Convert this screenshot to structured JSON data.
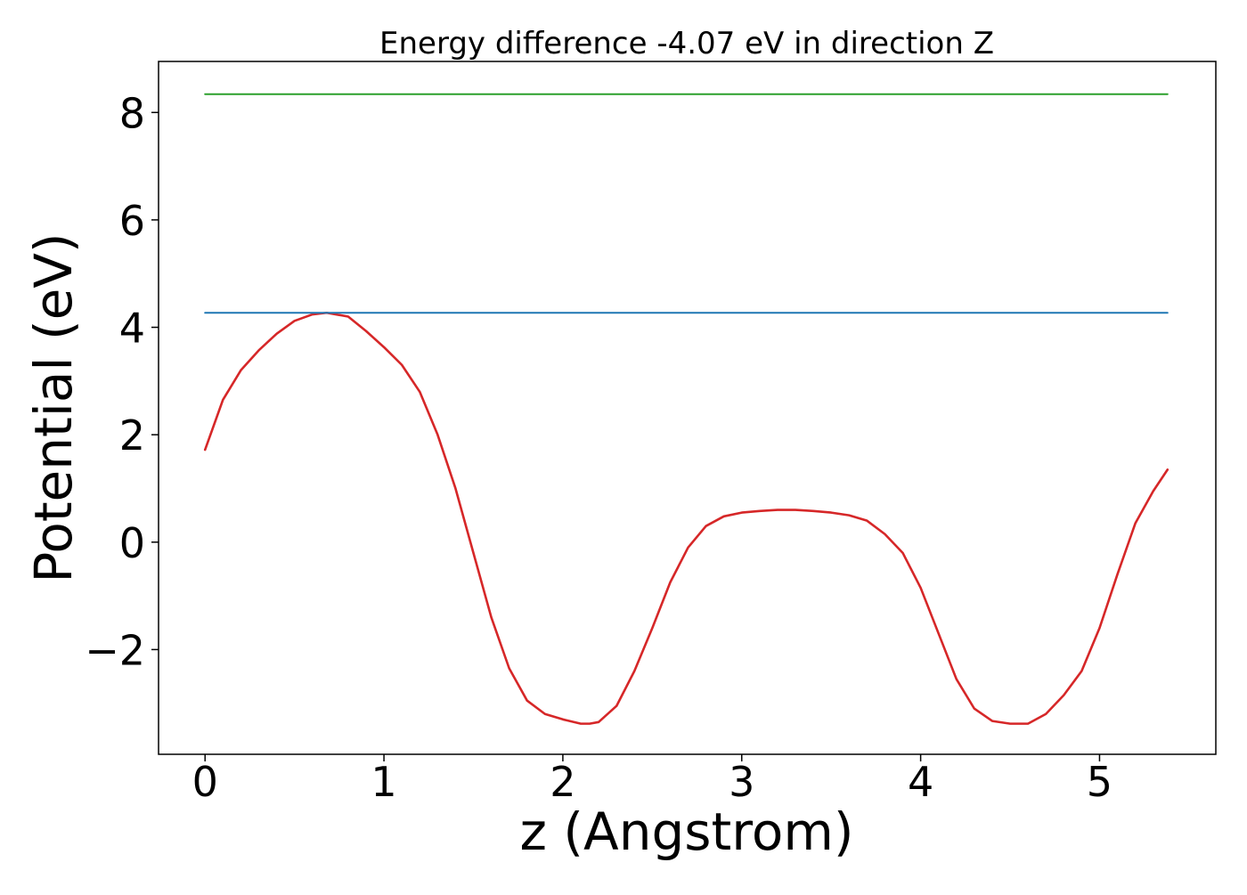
{
  "chart_data": {
    "type": "line",
    "title": "Energy difference -4.07 eV in direction Z",
    "xlabel": "z (Angstrom)",
    "ylabel": "Potential (eV)",
    "xlim": [
      -0.26,
      5.65
    ],
    "ylim": [
      -3.95,
      8.95
    ],
    "x_ticks": [
      0,
      1,
      2,
      3,
      4,
      5
    ],
    "x_tick_labels": [
      "0",
      "1",
      "2",
      "3",
      "4",
      "5"
    ],
    "y_ticks": [
      -2,
      0,
      2,
      4,
      6,
      8
    ],
    "y_tick_labels": [
      "−2",
      "0",
      "2",
      "4",
      "6",
      "8"
    ],
    "grid": false,
    "legend": false,
    "series": [
      {
        "color": "#d62728",
        "x": [
          0.0,
          0.1,
          0.2,
          0.3,
          0.4,
          0.5,
          0.6,
          0.68,
          0.8,
          0.9,
          1.0,
          1.1,
          1.2,
          1.3,
          1.4,
          1.5,
          1.6,
          1.7,
          1.8,
          1.9,
          2.0,
          2.1,
          2.15,
          2.2,
          2.3,
          2.4,
          2.5,
          2.6,
          2.7,
          2.8,
          2.9,
          3.0,
          3.1,
          3.2,
          3.3,
          3.4,
          3.5,
          3.6,
          3.7,
          3.8,
          3.9,
          4.0,
          4.1,
          4.2,
          4.3,
          4.4,
          4.5,
          4.6,
          4.7,
          4.8,
          4.9,
          5.0,
          5.1,
          5.2,
          5.3,
          5.38
        ],
        "y": [
          1.72,
          2.65,
          3.2,
          3.57,
          3.88,
          4.12,
          4.24,
          4.27,
          4.2,
          3.93,
          3.63,
          3.3,
          2.8,
          2.0,
          1.0,
          -0.2,
          -1.4,
          -2.35,
          -2.95,
          -3.2,
          -3.3,
          -3.38,
          -3.38,
          -3.35,
          -3.05,
          -2.4,
          -1.6,
          -0.75,
          -0.1,
          0.3,
          0.48,
          0.55,
          0.58,
          0.6,
          0.6,
          0.58,
          0.55,
          0.5,
          0.4,
          0.15,
          -0.2,
          -0.85,
          -1.7,
          -2.55,
          -3.1,
          -3.33,
          -3.38,
          -3.38,
          -3.2,
          -2.85,
          -2.4,
          -1.6,
          -0.6,
          0.35,
          0.95,
          1.35
        ]
      },
      {
        "color": "#1f77b4",
        "x": [
          0.0,
          5.38
        ],
        "y": [
          4.27,
          4.27
        ]
      },
      {
        "color": "#2ca02c",
        "x": [
          0.0,
          5.38
        ],
        "y": [
          8.34,
          8.34
        ]
      }
    ]
  }
}
